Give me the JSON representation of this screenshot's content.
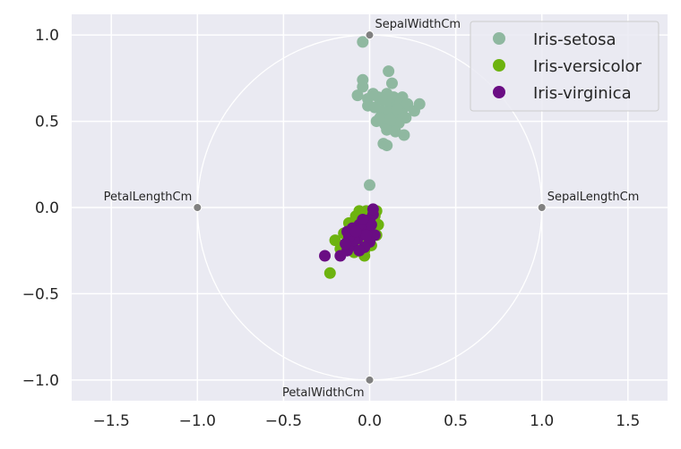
{
  "chart_data": {
    "type": "scatter",
    "title": "",
    "xlabel": "",
    "ylabel": "",
    "xlim": [
      -1.73,
      1.73
    ],
    "ylim": [
      -1.12,
      1.12
    ],
    "x_ticks": [
      -1.5,
      -1.0,
      -0.5,
      0.0,
      0.5,
      1.0,
      1.5
    ],
    "x_tick_labels": [
      "−1.5",
      "−1.0",
      "−0.5",
      "0.0",
      "0.5",
      "1.0",
      "1.5"
    ],
    "y_ticks": [
      -1.0,
      -0.5,
      0.0,
      0.5,
      1.0
    ],
    "y_tick_labels": [
      "−1.0",
      "−0.5",
      "0.0",
      "0.5",
      "1.0"
    ],
    "grid": true,
    "legend_position": "top-right",
    "unit_circle": true,
    "anchors": [
      {
        "name": "SepalWidthCm",
        "x": 0.0,
        "y": 1.0
      },
      {
        "name": "SepalLengthCm",
        "x": 1.0,
        "y": 0.0
      },
      {
        "name": "PetalLengthCm",
        "x": -1.0,
        "y": 0.0
      },
      {
        "name": "PetalWidthCm",
        "x": 0.0,
        "y": -1.0
      }
    ],
    "series": [
      {
        "name": "Iris-setosa",
        "color": "#8fb8a0",
        "points": [
          [
            -0.04,
            0.96
          ],
          [
            -0.04,
            0.74
          ],
          [
            -0.04,
            0.7
          ],
          [
            0.11,
            0.79
          ],
          [
            -0.07,
            0.65
          ],
          [
            0.13,
            0.72
          ],
          [
            -0.01,
            0.63
          ],
          [
            0.02,
            0.66
          ],
          [
            0.05,
            0.64
          ],
          [
            0.08,
            0.62
          ],
          [
            0.1,
            0.66
          ],
          [
            0.14,
            0.64
          ],
          [
            0.19,
            0.64
          ],
          [
            0.12,
            0.6
          ],
          [
            0.15,
            0.58
          ],
          [
            0.18,
            0.61
          ],
          [
            0.2,
            0.58
          ],
          [
            0.22,
            0.6
          ],
          [
            0.26,
            0.56
          ],
          [
            0.29,
            0.6
          ],
          [
            -0.01,
            0.59
          ],
          [
            0.03,
            0.58
          ],
          [
            0.07,
            0.56
          ],
          [
            0.11,
            0.55
          ],
          [
            0.14,
            0.53
          ],
          [
            0.18,
            0.55
          ],
          [
            0.21,
            0.52
          ],
          [
            0.04,
            0.5
          ],
          [
            0.09,
            0.48
          ],
          [
            0.13,
            0.47
          ],
          [
            0.17,
            0.49
          ],
          [
            0.1,
            0.45
          ],
          [
            0.15,
            0.44
          ],
          [
            0.2,
            0.42
          ],
          [
            0.08,
            0.37
          ],
          [
            0.1,
            0.36
          ],
          [
            0.06,
            0.52
          ],
          [
            0.12,
            0.51
          ],
          [
            0.16,
            0.57
          ],
          [
            0.0,
            0.13
          ]
        ]
      },
      {
        "name": "Iris-versicolor",
        "color": "#6db30f",
        "points": [
          [
            -0.23,
            -0.38
          ],
          [
            -0.2,
            -0.19
          ],
          [
            -0.17,
            -0.24
          ],
          [
            -0.12,
            -0.09
          ],
          [
            -0.1,
            -0.15
          ],
          [
            -0.08,
            -0.05
          ],
          [
            -0.06,
            -0.02
          ],
          [
            -0.04,
            -0.04
          ],
          [
            -0.02,
            -0.07
          ],
          [
            0.0,
            -0.03
          ],
          [
            0.03,
            -0.05
          ],
          [
            0.05,
            -0.1
          ],
          [
            0.02,
            -0.13
          ],
          [
            -0.01,
            -0.17
          ],
          [
            -0.04,
            -0.2
          ],
          [
            -0.07,
            -0.22
          ],
          [
            -0.09,
            -0.26
          ],
          [
            -0.03,
            -0.25
          ],
          [
            -0.03,
            -0.28
          ],
          [
            0.01,
            -0.22
          ],
          [
            0.04,
            -0.16
          ],
          [
            -0.13,
            -0.2
          ],
          [
            -0.11,
            -0.12
          ],
          [
            -0.05,
            -0.11
          ],
          [
            -0.02,
            -0.02
          ],
          [
            0.02,
            -0.09
          ],
          [
            0.04,
            -0.02
          ],
          [
            -0.08,
            -0.13
          ],
          [
            -0.06,
            -0.18
          ],
          [
            -0.15,
            -0.15
          ]
        ]
      },
      {
        "name": "Iris-virginica",
        "color": "#6a0d83",
        "points": [
          [
            -0.26,
            -0.28
          ],
          [
            -0.17,
            -0.28
          ],
          [
            -0.13,
            -0.25
          ],
          [
            -0.1,
            -0.22
          ],
          [
            -0.07,
            -0.18
          ],
          [
            -0.05,
            -0.14
          ],
          [
            -0.03,
            -0.1
          ],
          [
            0.0,
            -0.07
          ],
          [
            0.02,
            -0.04
          ],
          [
            0.02,
            -0.01
          ],
          [
            -0.01,
            -0.12
          ],
          [
            0.03,
            -0.16
          ],
          [
            0.0,
            -0.2
          ],
          [
            -0.03,
            -0.23
          ],
          [
            -0.06,
            -0.25
          ],
          [
            -0.09,
            -0.19
          ],
          [
            -0.12,
            -0.17
          ],
          [
            -0.13,
            -0.14
          ],
          [
            -0.1,
            -0.12
          ],
          [
            -0.06,
            -0.1
          ],
          [
            -0.02,
            -0.16
          ],
          [
            0.01,
            -0.1
          ],
          [
            -0.04,
            -0.07
          ],
          [
            -0.08,
            -0.14
          ],
          [
            -0.14,
            -0.21
          ]
        ]
      }
    ]
  }
}
